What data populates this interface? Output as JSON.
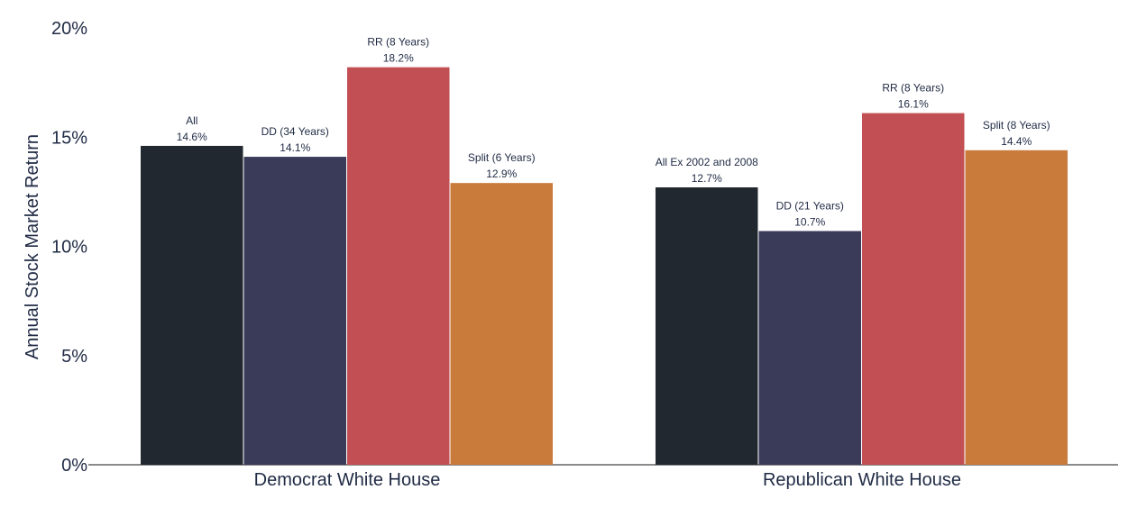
{
  "chart_data": {
    "type": "bar",
    "ylabel": "Annual Stock Market Return",
    "ylim": [
      0,
      20
    ],
    "yticks": [
      "0%",
      "5%",
      "10%",
      "15%",
      "20%"
    ],
    "ytick_values": [
      0,
      5,
      10,
      15,
      20
    ],
    "grid": false,
    "groups": [
      {
        "category": "Democrat White House",
        "bars": [
          {
            "name": "All",
            "value": 14.6,
            "label": "14.6%",
            "color": "#22282f"
          },
          {
            "name": "DD (34 Years)",
            "value": 14.1,
            "label": "14.1%",
            "color": "#3a3b59"
          },
          {
            "name": "RR (8 Years)",
            "value": 18.2,
            "label": "18.2%",
            "color": "#c24f53"
          },
          {
            "name": "Split (6 Years)",
            "value": 12.9,
            "label": "12.9%",
            "color": "#c97b3b"
          }
        ]
      },
      {
        "category": "Republican White House",
        "bars": [
          {
            "name": "All Ex 2002 and 2008",
            "value": 12.7,
            "label": "12.7%",
            "color": "#22282f"
          },
          {
            "name": "DD (21 Years)",
            "value": 10.7,
            "label": "10.7%",
            "color": "#3a3b59"
          },
          {
            "name": "RR (8 Years)",
            "value": 16.1,
            "label": "16.1%",
            "color": "#c24f53"
          },
          {
            "name": "Split (8 Years)",
            "value": 14.4,
            "label": "14.4%",
            "color": "#c97b3b"
          }
        ]
      }
    ]
  }
}
